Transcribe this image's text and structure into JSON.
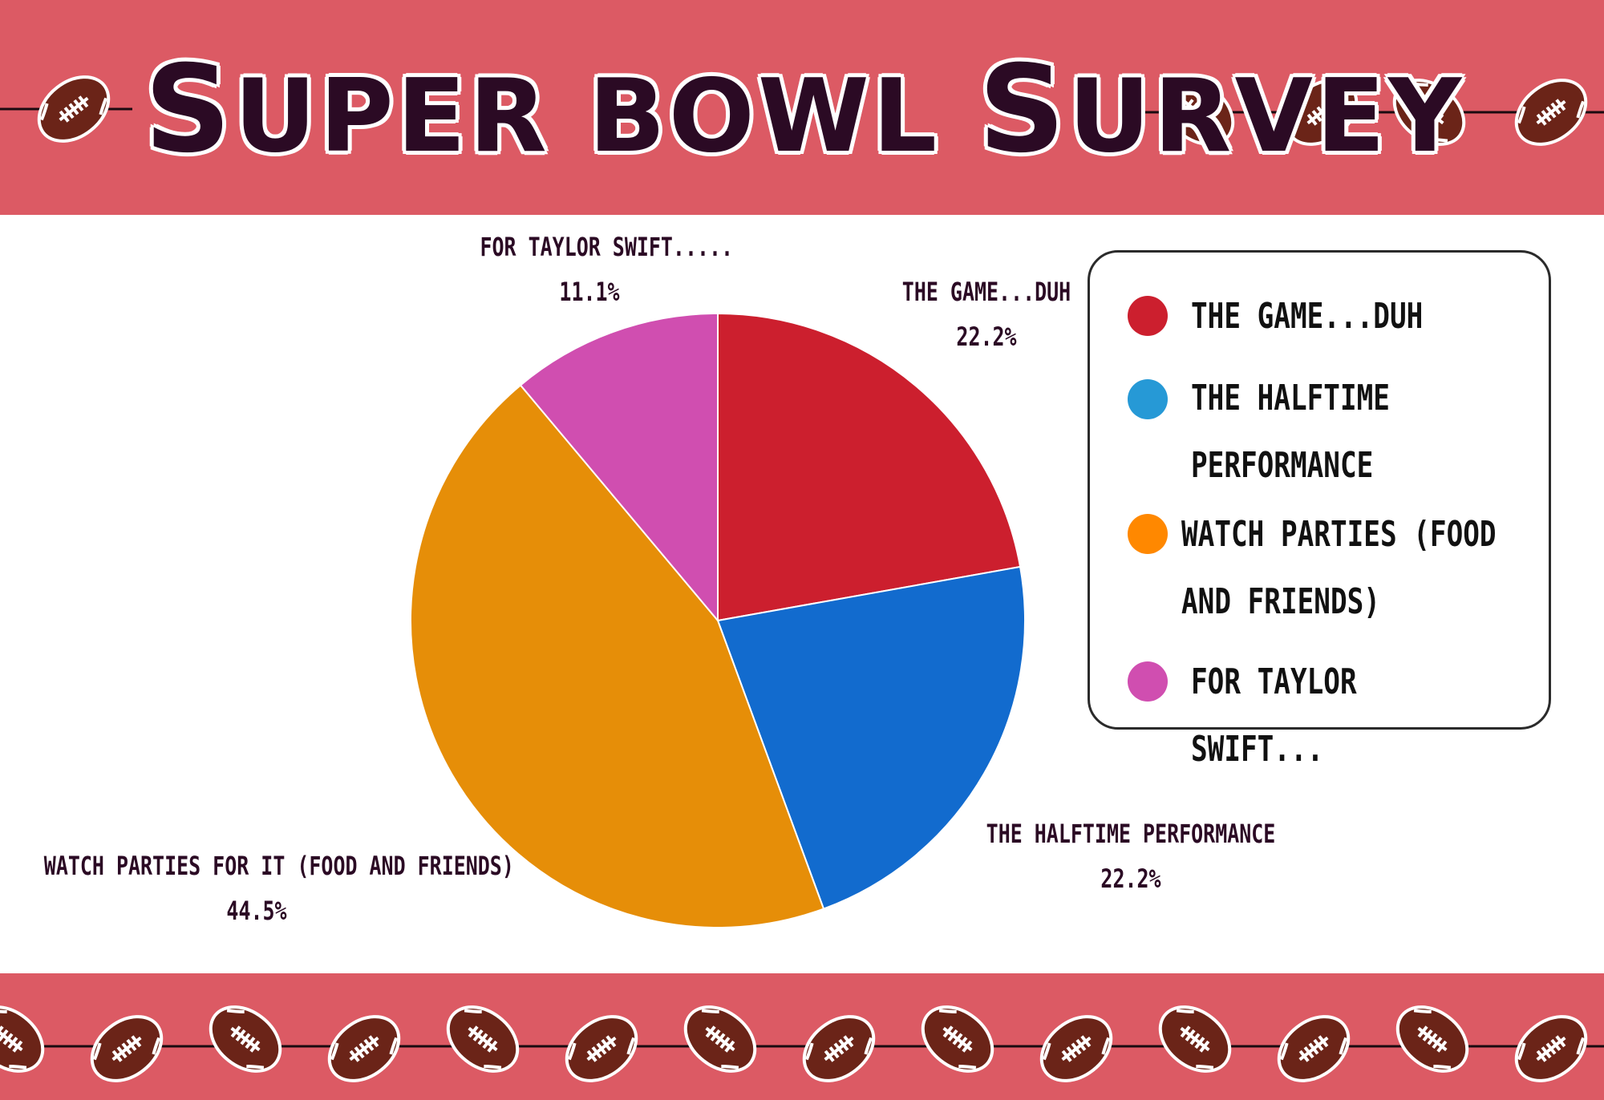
{
  "title": "Super bowl Survey",
  "colors": {
    "band": "#dc5a64",
    "football": "#6b2418",
    "lace": "#ffffff",
    "text_dark": "#2b0a24"
  },
  "chart_data": {
    "type": "pie",
    "title": "Super bowl Survey",
    "slices": [
      {
        "label": "THE GAME...DUH",
        "value": 22.2,
        "value_label": "22.2%",
        "color": "#cc1f2e",
        "legend_label": "THE GAME...DUH"
      },
      {
        "label": "THE HALFTIME PERFORMANCE",
        "value": 22.2,
        "value_label": "22.2%",
        "color": "#126bce",
        "legend_label": "THE HALFTIME PERFORMANCE"
      },
      {
        "label": "WATCH PARTIES FOR IT (FOOD AND FRIENDS)",
        "value": 44.5,
        "value_label": "44.5%",
        "color": "#e68e08",
        "legend_label": "WATCH PARTIES (FOOD AND FRIENDS)"
      },
      {
        "label": "FOR TAYLOR SWIFT.....",
        "value": 11.1,
        "value_label": "11.1%",
        "color": "#d04eb0",
        "legend_label": "FOR TAYLOR SWIFT..."
      }
    ],
    "legend_dot_colors": [
      "#cc1f2e",
      "#2699d6",
      "#ff8800",
      "#d04eb0"
    ],
    "legend_position": "right",
    "start": "top",
    "direction": "clockwise"
  },
  "decor": {
    "top_icon": "football-icon",
    "bottom_icon": "football-icon",
    "top_icon_count": 5,
    "bottom_icon_count": 14
  }
}
